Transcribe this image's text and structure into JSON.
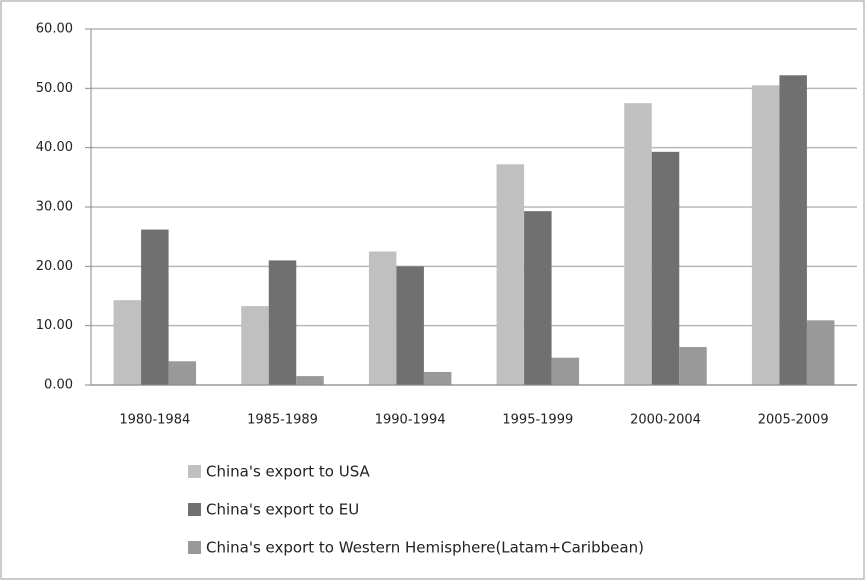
{
  "chart_data": {
    "type": "bar",
    "categories": [
      "1980-1984",
      "1985-1989",
      "1990-1994",
      "1995-1999",
      "2000-2004",
      "2005-2009"
    ],
    "series": [
      {
        "name": "China's export to USA",
        "color": "#c0c0c0",
        "values": [
          14.3,
          13.3,
          22.5,
          37.2,
          47.5,
          50.5
        ]
      },
      {
        "name": "China's export to EU",
        "color": "#707070",
        "values": [
          26.2,
          21.0,
          20.0,
          29.3,
          39.3,
          52.2
        ]
      },
      {
        "name": "China's export to Western Hemisphere(Latam+Caribbean)",
        "color": "#999999",
        "values": [
          4.0,
          1.5,
          2.2,
          4.6,
          6.4,
          10.9
        ]
      }
    ],
    "ylim": [
      0,
      60
    ],
    "yticks": [
      {
        "value": 0,
        "label": "0.00"
      },
      {
        "value": 10,
        "label": "10.00"
      },
      {
        "value": 20,
        "label": "20.00"
      },
      {
        "value": 30,
        "label": "30.00"
      },
      {
        "value": 40,
        "label": "40.00"
      },
      {
        "value": 50,
        "label": "50.00"
      },
      {
        "value": 60,
        "label": "60.00"
      }
    ],
    "grid": true,
    "legend": "bottom"
  }
}
